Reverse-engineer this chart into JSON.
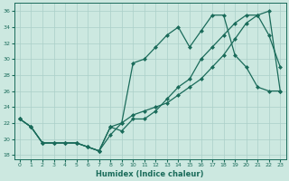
{
  "xlabel": "Humidex (Indice chaleur)",
  "bg_color": "#cce8e0",
  "grid_color": "#aacfc8",
  "line_color": "#1a6b5a",
  "ylim": [
    17.5,
    37
  ],
  "xlim": [
    -0.5,
    23.5
  ],
  "yticks": [
    18,
    20,
    22,
    24,
    26,
    28,
    30,
    32,
    34,
    36
  ],
  "xticks": [
    0,
    1,
    2,
    3,
    4,
    5,
    6,
    7,
    8,
    9,
    10,
    11,
    12,
    13,
    14,
    15,
    16,
    17,
    18,
    19,
    20,
    21,
    22,
    23
  ],
  "line1_x": [
    0,
    1,
    2,
    3,
    4,
    5,
    6,
    7,
    8,
    9,
    10,
    11,
    12,
    13,
    14,
    15,
    16,
    17,
    18,
    19,
    20,
    21,
    22,
    23
  ],
  "line1_y": [
    22.5,
    21.5,
    19.5,
    19.5,
    19.5,
    19.5,
    19.0,
    18.5,
    21.5,
    22.0,
    29.5,
    30.0,
    31.5,
    33.0,
    34.0,
    31.5,
    33.5,
    35.5,
    35.5,
    30.5,
    29.0,
    26.5,
    26.0,
    26.0
  ],
  "line2_x": [
    0,
    1,
    2,
    3,
    4,
    5,
    6,
    7,
    8,
    9,
    10,
    11,
    12,
    13,
    14,
    15,
    16,
    17,
    18,
    19,
    20,
    21,
    22,
    23
  ],
  "line2_y": [
    22.5,
    21.5,
    19.5,
    19.5,
    19.5,
    19.5,
    19.0,
    18.5,
    21.5,
    21.0,
    22.5,
    22.5,
    23.5,
    25.0,
    26.5,
    27.5,
    30.0,
    31.5,
    33.0,
    34.5,
    35.5,
    35.5,
    33.0,
    29.0
  ],
  "line3_x": [
    0,
    1,
    2,
    3,
    4,
    5,
    6,
    7,
    8,
    9,
    10,
    11,
    12,
    13,
    14,
    15,
    16,
    17,
    18,
    19,
    20,
    21,
    22,
    23
  ],
  "line3_y": [
    22.5,
    21.5,
    19.5,
    19.5,
    19.5,
    19.5,
    19.0,
    18.5,
    20.5,
    22.0,
    23.0,
    23.5,
    24.0,
    24.5,
    25.5,
    26.5,
    27.5,
    29.0,
    30.5,
    32.5,
    34.5,
    35.5,
    36.0,
    26.0
  ]
}
